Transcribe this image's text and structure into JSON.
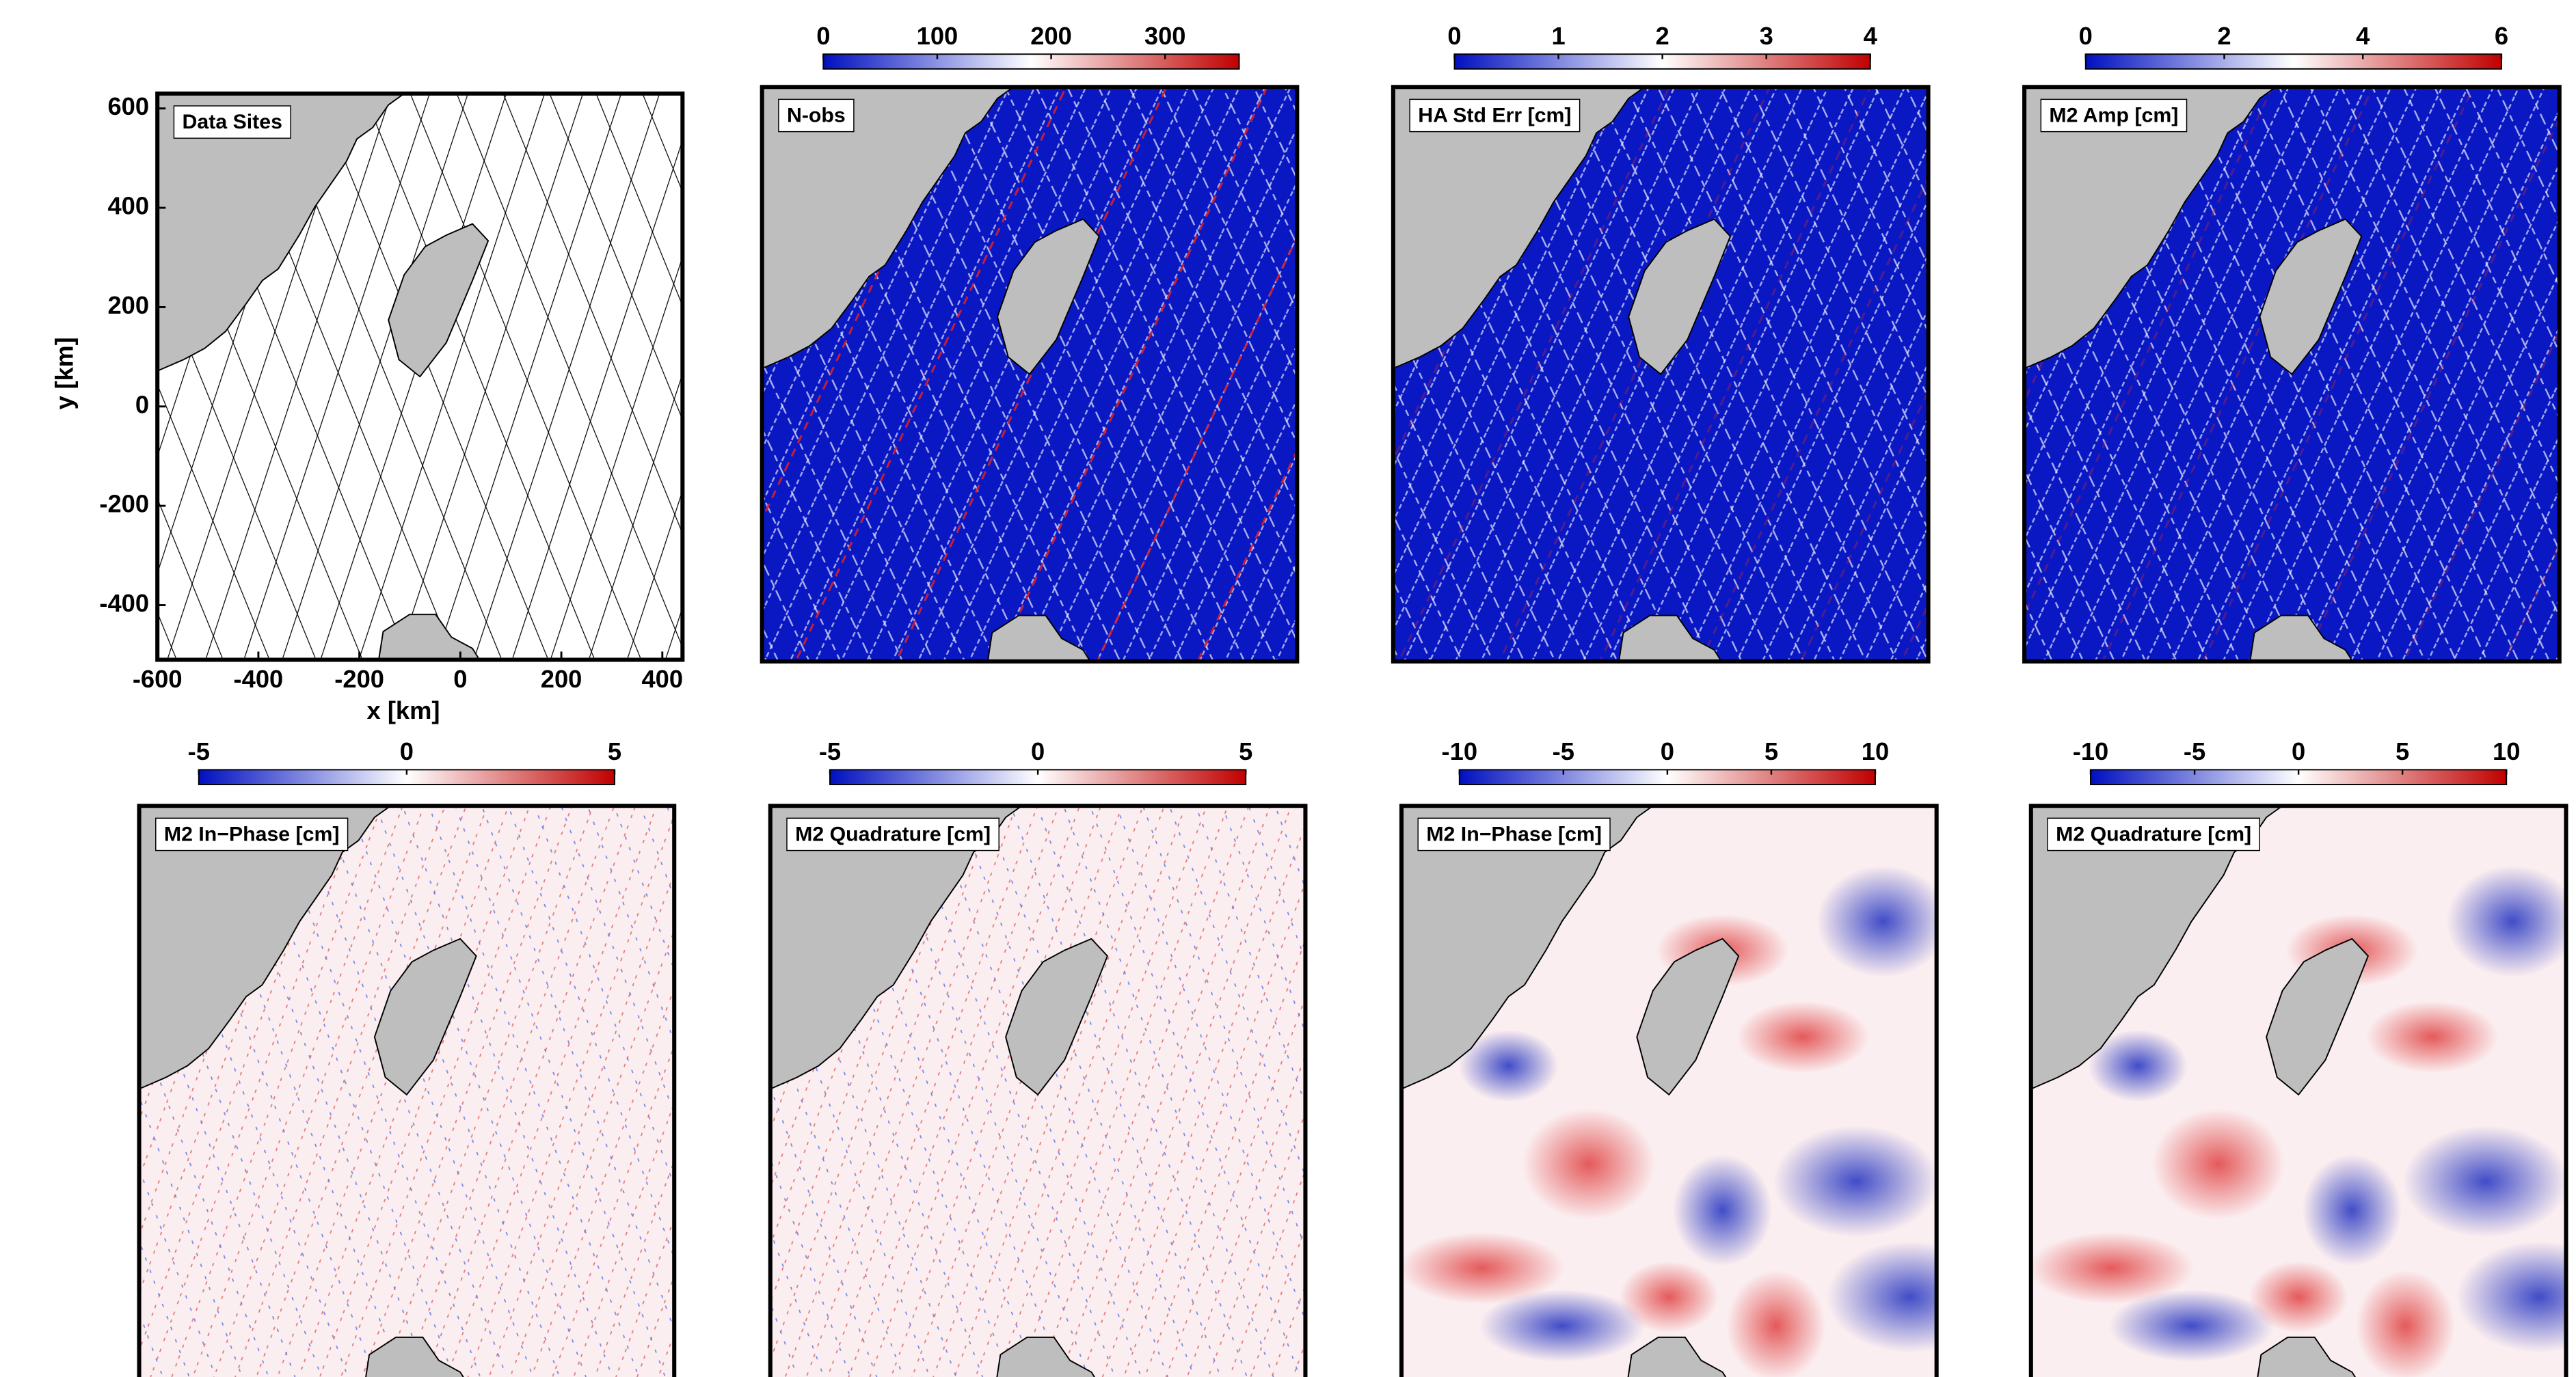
{
  "chart_data": [
    {
      "type": "tracks",
      "title": "Data Sites",
      "x_label": "x [km]",
      "y_label": "y [km]",
      "xlim": [
        -600,
        440
      ],
      "ylim": [
        -510,
        630
      ],
      "xticks": [
        -600,
        -400,
        -200,
        0,
        200,
        400
      ],
      "yticks": [
        -400,
        -200,
        0,
        200,
        400,
        600
      ]
    },
    {
      "type": "heatmap",
      "title": "N-obs",
      "clim": [
        0,
        365
      ],
      "cticks": [
        0,
        100,
        200,
        300
      ],
      "colors": [
        "#0010c0",
        "#ffffff",
        "#c00000"
      ]
    },
    {
      "type": "heatmap",
      "title": "HA Std Err [cm]",
      "clim": [
        0,
        4
      ],
      "cticks": [
        0,
        1,
        2,
        3,
        4
      ],
      "colors": [
        "#0010c0",
        "#ffffff",
        "#c00000"
      ]
    },
    {
      "type": "heatmap",
      "title": "M2 Amp [cm]",
      "clim": [
        0,
        6
      ],
      "cticks": [
        0,
        2,
        4,
        6
      ],
      "colors": [
        "#0010c0",
        "#ffffff",
        "#c00000"
      ]
    },
    {
      "type": "heatmap",
      "title": "M2 In−Phase [cm]",
      "clim": [
        -5,
        5
      ],
      "cticks": [
        -5,
        0,
        5
      ],
      "colors": [
        "#0010c0",
        "#ffffff",
        "#c00000"
      ]
    },
    {
      "type": "heatmap",
      "title": "M2 Quadrature [cm]",
      "clim": [
        -5,
        5
      ],
      "cticks": [
        -5,
        0,
        5
      ],
      "colors": [
        "#0010c0",
        "#ffffff",
        "#c00000"
      ]
    },
    {
      "type": "heatmap",
      "title": "M2 In−Phase [cm]",
      "clim": [
        -10,
        10
      ],
      "cticks": [
        -10,
        -5,
        0,
        5,
        10
      ],
      "colors": [
        "#0010c0",
        "#ffffff",
        "#c00000"
      ]
    },
    {
      "type": "heatmap",
      "title": "M2 Quadrature [cm]",
      "clim": [
        -10,
        10
      ],
      "cticks": [
        -10,
        -5,
        0,
        5,
        10
      ],
      "colors": [
        "#0010c0",
        "#ffffff",
        "#c00000"
      ]
    }
  ]
}
